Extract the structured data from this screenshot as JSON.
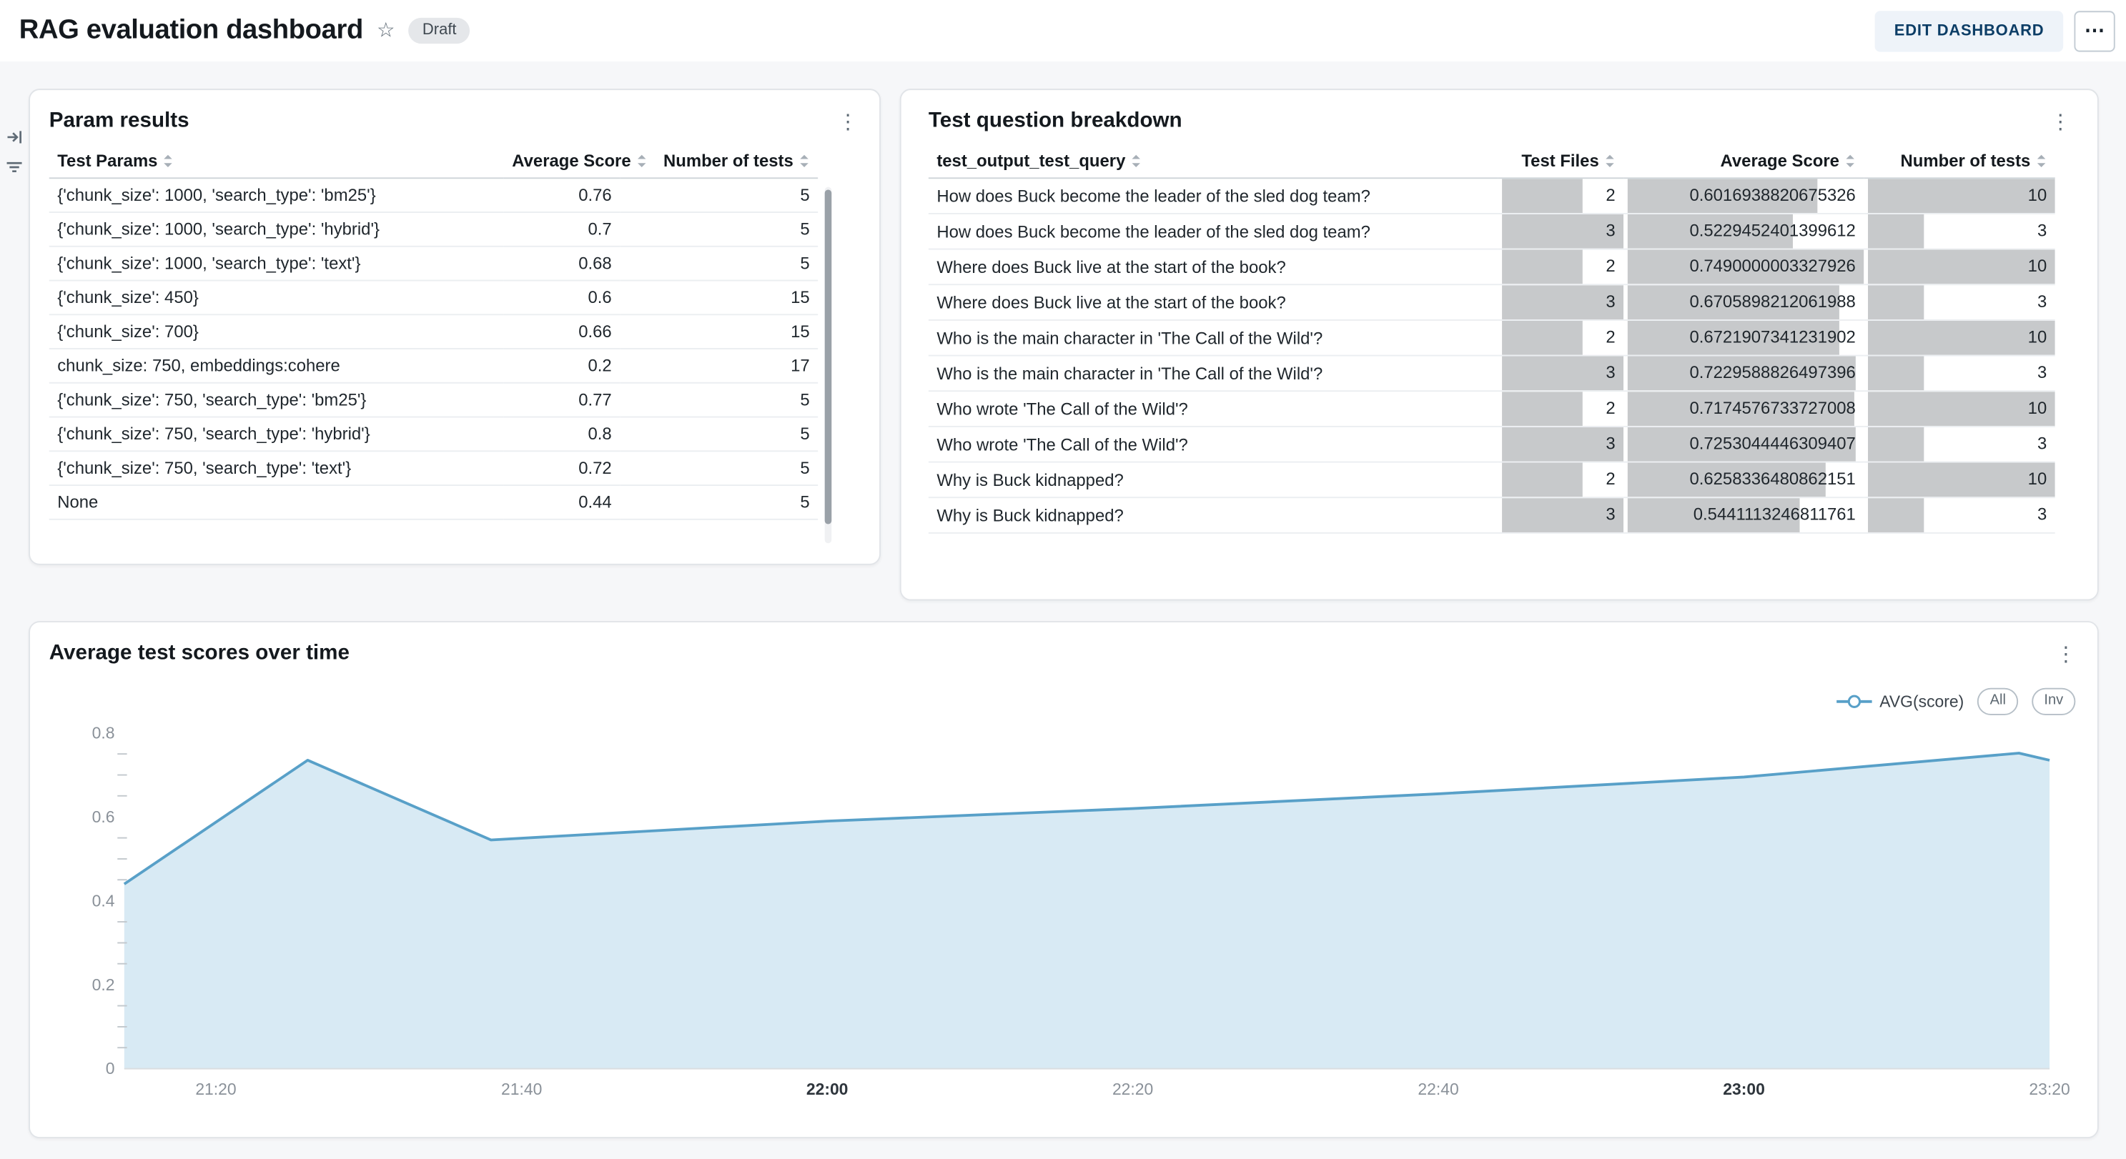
{
  "header": {
    "title": "RAG evaluation dashboard",
    "status_badge": "Draft",
    "edit_button": "EDIT DASHBOARD"
  },
  "param_results": {
    "title": "Param results",
    "columns": [
      "Test Params",
      "Average Score",
      "Number of tests"
    ],
    "rows": [
      {
        "params": "{'chunk_size': 1000, 'search_type': 'bm25'}",
        "avg": "0.76",
        "count": "5"
      },
      {
        "params": "{'chunk_size': 1000, 'search_type': 'hybrid'}",
        "avg": "0.7",
        "count": "5"
      },
      {
        "params": "{'chunk_size': 1000, 'search_type': 'text'}",
        "avg": "0.68",
        "count": "5"
      },
      {
        "params": "{'chunk_size': 450}",
        "avg": "0.6",
        "count": "15"
      },
      {
        "params": "{'chunk_size': 700}",
        "avg": "0.66",
        "count": "15"
      },
      {
        "params": "chunk_size: 750, embeddings:cohere",
        "avg": "0.2",
        "count": "17"
      },
      {
        "params": "{'chunk_size': 750, 'search_type': 'bm25'}",
        "avg": "0.77",
        "count": "5"
      },
      {
        "params": "{'chunk_size': 750, 'search_type': 'hybrid'}",
        "avg": "0.8",
        "count": "5"
      },
      {
        "params": "{'chunk_size': 750, 'search_type': 'text'}",
        "avg": "0.72",
        "count": "5"
      },
      {
        "params": "None",
        "avg": "0.44",
        "count": "5"
      }
    ]
  },
  "question_breakdown": {
    "title": "Test question breakdown",
    "columns": [
      "test_output_test_query",
      "Test Files",
      "Average Score",
      "Number of tests"
    ],
    "bar_max": {
      "files": 3,
      "score": 0.7490000003327926,
      "tests": 10
    },
    "bar_color": "#c7c9cb",
    "rows": [
      {
        "query": "How does Buck become the leader of the sled dog team?",
        "files": 2,
        "score": "0.6016938820675326",
        "tests": 10
      },
      {
        "query": "How does Buck become the leader of the sled dog team?",
        "files": 3,
        "score": "0.5229452401399612",
        "tests": 3
      },
      {
        "query": "Where does Buck live at the start of the book?",
        "files": 2,
        "score": "0.7490000003327926",
        "tests": 10
      },
      {
        "query": "Where does Buck live at the start of the book?",
        "files": 3,
        "score": "0.6705898212061988",
        "tests": 3
      },
      {
        "query": "Who is the main character in 'The Call of the Wild'?",
        "files": 2,
        "score": "0.6721907341231902",
        "tests": 10
      },
      {
        "query": "Who is the main character in 'The Call of the Wild'?",
        "files": 3,
        "score": "0.7229588826497396",
        "tests": 3
      },
      {
        "query": "Who wrote 'The Call of the Wild'?",
        "files": 2,
        "score": "0.7174576733727008",
        "tests": 10
      },
      {
        "query": "Who wrote 'The Call of the Wild'?",
        "files": 3,
        "score": "0.7253044446309407",
        "tests": 3
      },
      {
        "query": "Why is Buck kidnapped?",
        "files": 2,
        "score": "0.6258336480862151",
        "tests": 10
      },
      {
        "query": "Why is Buck kidnapped?",
        "files": 3,
        "score": "0.5441113246811761",
        "tests": 3
      }
    ]
  },
  "chart_card": {
    "title": "Average test scores over time",
    "legend_series": "AVG(score)",
    "button_all": "All",
    "button_inv": "Inv"
  },
  "chart_data": {
    "type": "area",
    "title": "Average test scores over time",
    "series_name": "AVG(score)",
    "x": [
      "21:14",
      "21:26",
      "21:38",
      "22:00",
      "22:20",
      "22:40",
      "23:00",
      "23:18",
      "23:20"
    ],
    "values": [
      0.44,
      0.735,
      0.545,
      0.59,
      0.62,
      0.655,
      0.695,
      0.752,
      0.735
    ],
    "ylim": [
      0,
      0.8
    ],
    "y_ticks": [
      0,
      0.2,
      0.4,
      0.6,
      0.8
    ],
    "minor_tick_step": 0.05,
    "x_ticks": [
      {
        "label": "21:20",
        "bold": false
      },
      {
        "label": "21:40",
        "bold": false
      },
      {
        "label": "22:00",
        "bold": true
      },
      {
        "label": "22:20",
        "bold": false
      },
      {
        "label": "22:40",
        "bold": false
      },
      {
        "label": "23:00",
        "bold": true
      },
      {
        "label": "23:20",
        "bold": false
      }
    ],
    "line_color": "#58a0c8",
    "area_color": "#d8eaf4",
    "legend_position": "top-right",
    "grid": false
  }
}
